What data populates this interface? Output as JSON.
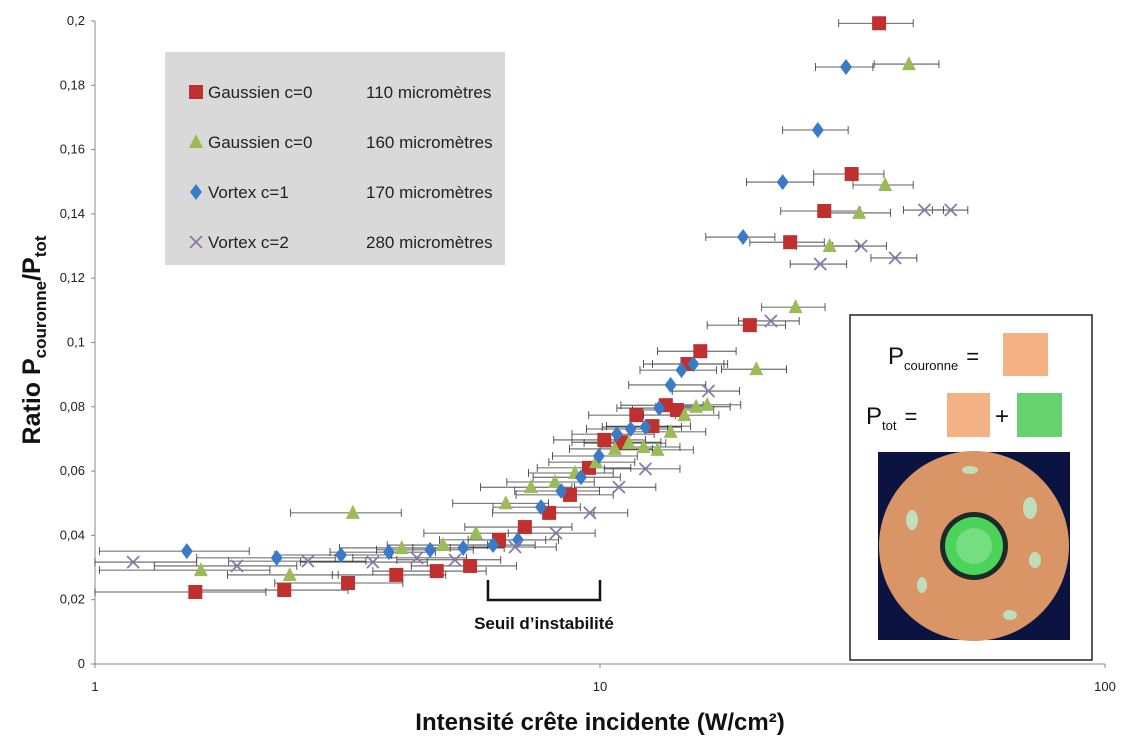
{
  "chart_data": {
    "type": "scatter",
    "xlabel": "Intensité crête incidente (W/cm²)",
    "ylabel": {
      "main": "Ratio P",
      "sub1": "couronne",
      "mid": "/P",
      "sub2": "tot"
    },
    "xscale": "log",
    "xlim": [
      1,
      100
    ],
    "xticks": [
      1,
      10,
      100
    ],
    "ylim": [
      0,
      0.2
    ],
    "yticks": [
      0,
      {
        "value": 0.02,
        "label": "0,02"
      },
      {
        "value": 0.04,
        "label": "0,04"
      },
      {
        "value": 0.06,
        "label": "0,06"
      },
      {
        "value": 0.08,
        "label": "0,08"
      },
      {
        "value": 0.1,
        "label": "0,1"
      },
      {
        "value": 0.12,
        "label": "0,12"
      },
      {
        "value": 0.14,
        "label": "0,14"
      },
      {
        "value": 0.16,
        "label": "0,16"
      },
      {
        "value": 0.18,
        "label": "0,18"
      },
      {
        "value": 0.2,
        "label": "0,2"
      }
    ],
    "annotation": {
      "text": "Seuil d’instabilité",
      "x_range": [
        6,
        10
      ]
    },
    "series": [
      {
        "name": "Gaussien c=0",
        "detail": "110 micromètres",
        "marker": "square",
        "color": "#c0302e",
        "x": [
          1.58,
          2.37,
          3.17,
          3.95,
          4.75,
          5.53,
          6.31,
          7.1,
          7.93,
          8.72,
          9.51,
          10.2,
          11.0,
          11.8,
          12.7,
          13.5,
          14.2,
          14.9,
          15.8,
          19.8,
          23.8,
          27.8,
          31.5,
          35.7
        ],
        "values": [
          0.0224,
          0.023,
          0.0252,
          0.0277,
          0.0289,
          0.0305,
          0.0386,
          0.0426,
          0.047,
          0.0526,
          0.061,
          0.0697,
          0.069,
          0.0774,
          0.074,
          0.0805,
          0.079,
          0.0933,
          0.0973,
          0.1054,
          0.1312,
          0.1409,
          0.1524,
          0.1993
        ],
        "x_err": [
          0.6,
          0.8,
          0.9,
          1,
          1.2,
          1.3,
          1.5,
          1.7,
          1.8,
          1.9,
          2,
          2.1,
          2.2,
          2.3,
          2.4,
          2.5,
          2.6,
          2.7,
          2.8,
          3.5,
          4,
          5,
          5,
          6
        ]
      },
      {
        "name": "Gaussien c=0",
        "detail": "160 micromètres",
        "marker": "triangle",
        "color": "#9bbb59",
        "x": [
          1.62,
          2.43,
          3.24,
          4.05,
          4.89,
          5.68,
          6.51,
          7.3,
          8.14,
          8.92,
          9.82,
          10.7,
          11.4,
          12.2,
          13.0,
          13.8,
          14.7,
          15.5,
          16.3,
          20.4,
          24.4,
          28.5,
          32.6,
          36.7,
          40.9
        ],
        "values": [
          0.0292,
          0.0277,
          0.047,
          0.0361,
          0.037,
          0.0407,
          0.05,
          0.055,
          0.0566,
          0.0594,
          0.0628,
          0.0669,
          0.0687,
          0.0675,
          0.0666,
          0.0722,
          0.0774,
          0.08,
          0.0806,
          0.0917,
          0.111,
          0.13,
          0.1403,
          0.149,
          0.1866
        ],
        "x_err": [
          0.6,
          0.6,
          0.8,
          1,
          1.1,
          1.2,
          1.4,
          1.5,
          1.6,
          1.7,
          1.9,
          2,
          2.1,
          2.2,
          2.3,
          2.4,
          2.5,
          2.6,
          2.7,
          3,
          3.5,
          4,
          5,
          5,
          6
        ]
      },
      {
        "name": "Vortex c=1",
        "detail": "170 micromètres",
        "marker": "diamond",
        "color": "#3a7bc8",
        "x": [
          1.52,
          2.29,
          3.07,
          3.82,
          4.61,
          5.36,
          6.14,
          6.88,
          7.64,
          8.38,
          9.17,
          9.95,
          10.8,
          11.5,
          12.3,
          13.1,
          13.8,
          14.5,
          15.3,
          19.2,
          23.0,
          27.0,
          30.7
        ],
        "values": [
          0.0351,
          0.033,
          0.0339,
          0.0348,
          0.0355,
          0.0361,
          0.037,
          0.0386,
          0.0488,
          0.0538,
          0.0581,
          0.0647,
          0.0715,
          0.0731,
          0.0737,
          0.0796,
          0.0868,
          0.0914,
          0.0933,
          0.1328,
          0.1499,
          0.1661,
          0.1857
        ],
        "x_err": [
          0.5,
          0.7,
          0.8,
          0.9,
          1,
          1.1,
          1.3,
          1.4,
          1.5,
          1.6,
          1.8,
          1.9,
          2,
          2.1,
          2.2,
          2.3,
          2.4,
          2.5,
          2.6,
          3,
          3.5,
          4,
          4
        ]
      },
      {
        "name": "Vortex c=2",
        "detail": "280 micromètres",
        "marker": "x",
        "color": "#8a7aa8",
        "x": [
          1.19,
          1.91,
          2.64,
          3.55,
          4.34,
          5.16,
          6.79,
          8.18,
          9.55,
          10.9,
          12.3,
          16.4,
          21.8,
          27.3,
          32.9,
          38.4,
          43.9,
          49.5
        ],
        "values": [
          0.0317,
          0.0305,
          0.032,
          0.0317,
          0.033,
          0.0324,
          0.0364,
          0.0407,
          0.047,
          0.055,
          0.0607,
          0.0849,
          0.1067,
          0.1244,
          0.13,
          0.1263,
          0.1412,
          0.1412
        ],
        "x_err": [
          0.4,
          0.6,
          0.8,
          1,
          1.1,
          1.2,
          1.4,
          1.6,
          1.8,
          2,
          2.1,
          2.5,
          3,
          3.5,
          4,
          4,
          4,
          4
        ]
      }
    ]
  },
  "inset": {
    "p": "P",
    "sub1": "couronne",
    "eq1": "=",
    "p2": "P",
    "sub2": "tot",
    "eq2": "=",
    "plus": "+"
  }
}
